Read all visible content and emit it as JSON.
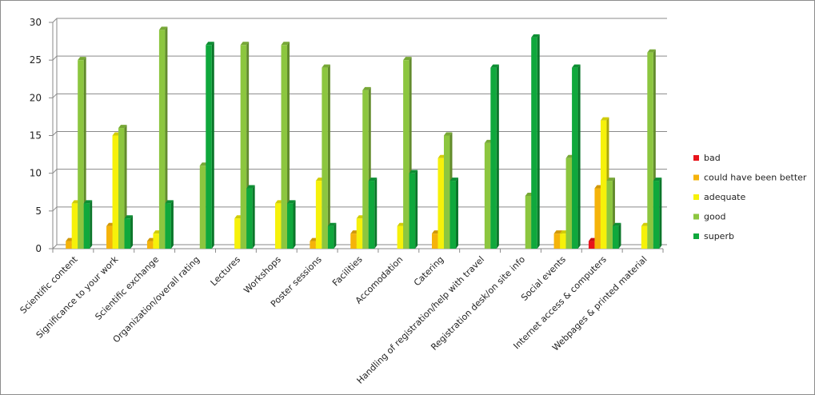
{
  "chart_data": {
    "type": "bar",
    "categories": [
      "Scientific content",
      "Significance to your work",
      "Scientific exchange",
      "Organization/overall rating",
      "Lectures",
      "Workshops",
      "Poster sessions",
      "Facilities",
      "Accomodation",
      "Catering",
      "Handling of registration/help with travel",
      "Registration desk/on site info",
      "Social events",
      "Internet access & computers",
      "Webpages & printed material"
    ],
    "series": [
      {
        "name": "bad",
        "color": "#e8141b",
        "values": [
          0,
          0,
          0,
          0,
          0,
          0,
          0,
          0,
          0,
          0,
          0,
          0,
          0,
          1,
          0
        ]
      },
      {
        "name": "could have been better",
        "color": "#f5b30a",
        "values": [
          1,
          3,
          1,
          0,
          0,
          0,
          1,
          2,
          0,
          2,
          0,
          0,
          2,
          8,
          0
        ]
      },
      {
        "name": "adequate",
        "color": "#f6f10a",
        "values": [
          6,
          15,
          2,
          0,
          4,
          6,
          9,
          4,
          3,
          12,
          0,
          0,
          2,
          17,
          3
        ]
      },
      {
        "name": "good",
        "color": "#8cc63f",
        "values": [
          25,
          16,
          29,
          11,
          27,
          27,
          24,
          21,
          25,
          15,
          14,
          7,
          12,
          9,
          26
        ]
      },
      {
        "name": "superb",
        "color": "#0fa83c",
        "values": [
          6,
          4,
          6,
          27,
          8,
          6,
          3,
          9,
          10,
          9,
          24,
          28,
          24,
          3,
          9
        ]
      }
    ],
    "y_ticks": [
      "0",
      "5",
      "10",
      "15",
      "20",
      "25",
      "30"
    ],
    "ylim": [
      0,
      30
    ],
    "grid": true,
    "legend_position": "right",
    "title": "",
    "xlabel": "",
    "ylabel": ""
  }
}
